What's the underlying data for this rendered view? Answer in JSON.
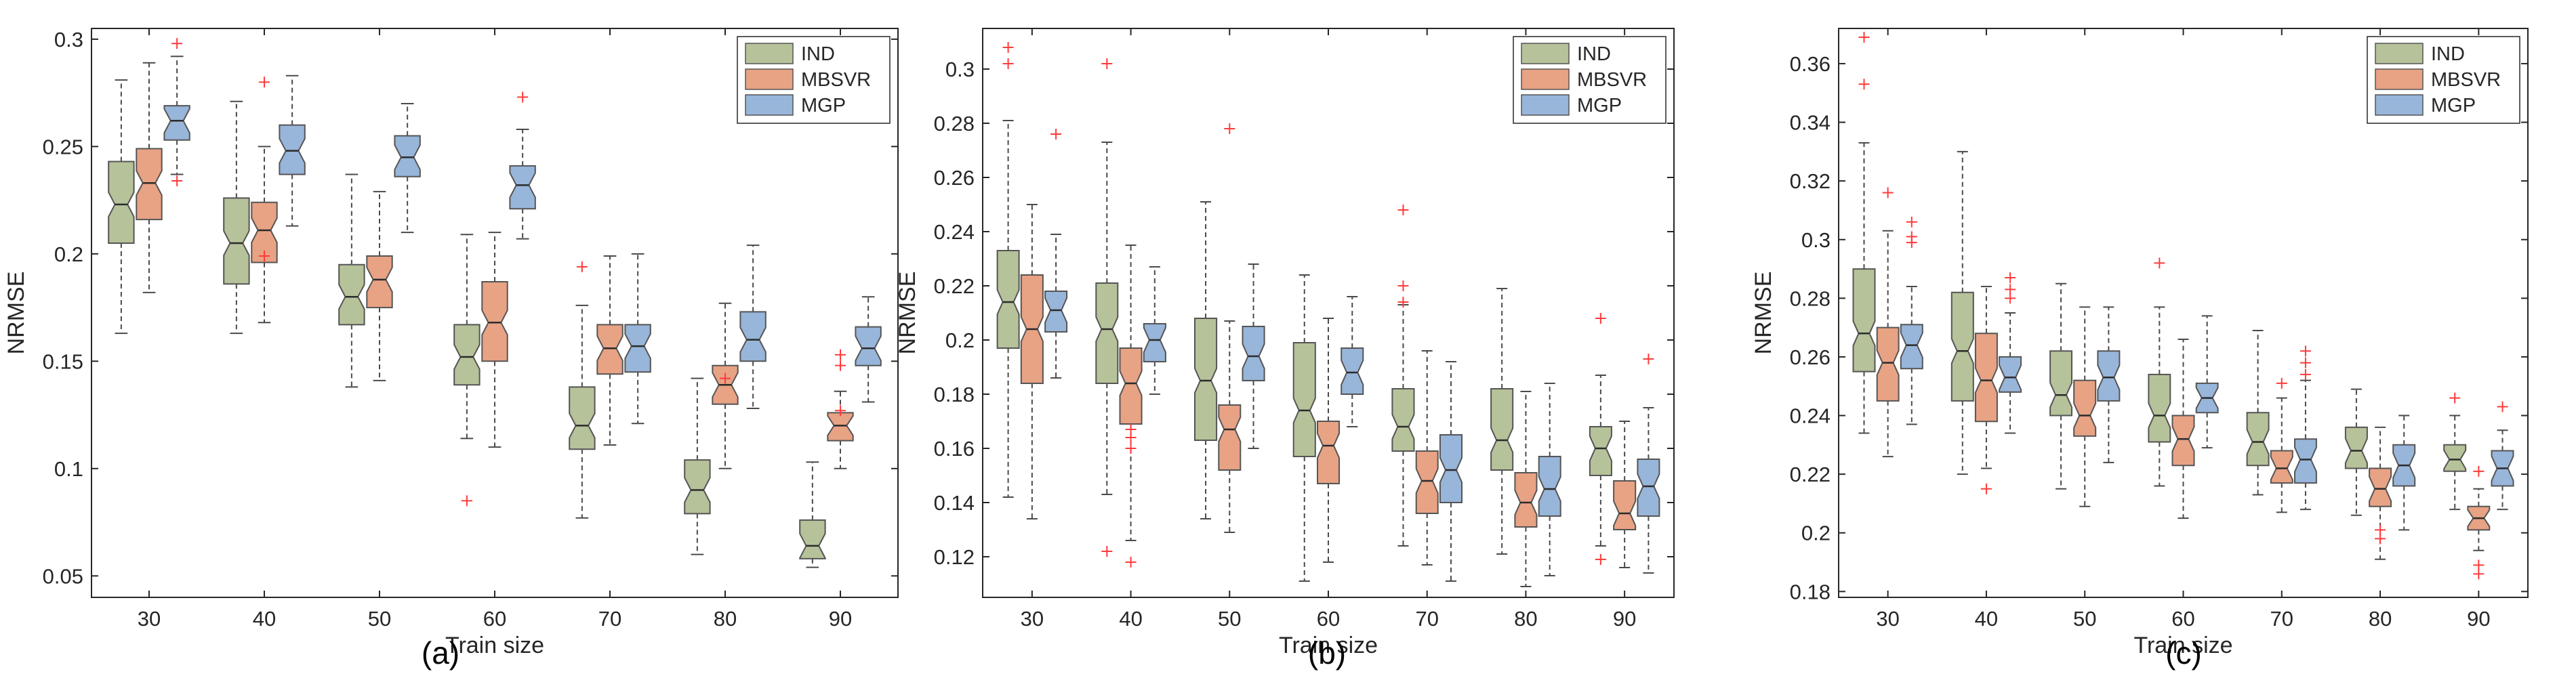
{
  "figure": {
    "panel_labels": [
      "(a)",
      "(b)",
      "(c)"
    ]
  },
  "colors": {
    "IND": "#b6c29a",
    "MBSVR": "#e8a284",
    "MGP": "#98b5da",
    "outlier": "#ff3b3b",
    "median": "#2b2b2b",
    "whisker": "#4a4a4a",
    "axis": "#262626"
  },
  "chart_data": [
    {
      "type": "boxplot",
      "panel": "(a)",
      "xlabel": "Train size",
      "ylabel": "NRMSE",
      "categories": [
        "30",
        "40",
        "50",
        "60",
        "70",
        "80",
        "90"
      ],
      "ylim": [
        0.04,
        0.305
      ],
      "yticks": [
        0.05,
        0.1,
        0.15,
        0.2,
        0.25,
        0.3
      ],
      "ytick_labels": [
        "0.05",
        "0.1",
        "0.15",
        "0.2",
        "0.25",
        "0.3"
      ],
      "legend": [
        "IND",
        "MBSVR",
        "MGP"
      ],
      "legend_position": "top-right",
      "series": [
        {
          "name": "IND",
          "boxes": [
            {
              "min": 0.163,
              "q1": 0.205,
              "median": 0.223,
              "q3": 0.243,
              "max": 0.281,
              "outliers": []
            },
            {
              "min": 0.163,
              "q1": 0.186,
              "median": 0.205,
              "q3": 0.226,
              "max": 0.271,
              "outliers": []
            },
            {
              "min": 0.138,
              "q1": 0.167,
              "median": 0.18,
              "q3": 0.195,
              "max": 0.237,
              "outliers": []
            },
            {
              "min": 0.114,
              "q1": 0.139,
              "median": 0.152,
              "q3": 0.167,
              "max": 0.209,
              "outliers": [
                0.085
              ]
            },
            {
              "min": 0.077,
              "q1": 0.109,
              "median": 0.12,
              "q3": 0.138,
              "max": 0.176,
              "outliers": [
                0.194
              ]
            },
            {
              "min": 0.06,
              "q1": 0.079,
              "median": 0.09,
              "q3": 0.104,
              "max": 0.142,
              "outliers": []
            },
            {
              "min": 0.054,
              "q1": 0.058,
              "median": 0.064,
              "q3": 0.076,
              "max": 0.103,
              "outliers": []
            }
          ]
        },
        {
          "name": "MBSVR",
          "boxes": [
            {
              "min": 0.182,
              "q1": 0.216,
              "median": 0.233,
              "q3": 0.249,
              "max": 0.289,
              "outliers": []
            },
            {
              "min": 0.168,
              "q1": 0.196,
              "median": 0.211,
              "q3": 0.224,
              "max": 0.25,
              "outliers": [
                0.28,
                0.199
              ]
            },
            {
              "min": 0.141,
              "q1": 0.175,
              "median": 0.188,
              "q3": 0.199,
              "max": 0.229,
              "outliers": []
            },
            {
              "min": 0.11,
              "q1": 0.15,
              "median": 0.168,
              "q3": 0.187,
              "max": 0.21,
              "outliers": []
            },
            {
              "min": 0.111,
              "q1": 0.144,
              "median": 0.156,
              "q3": 0.167,
              "max": 0.199,
              "outliers": []
            },
            {
              "min": 0.1,
              "q1": 0.13,
              "median": 0.139,
              "q3": 0.148,
              "max": 0.177,
              "outliers": [
                0.142
              ]
            },
            {
              "min": 0.1,
              "q1": 0.113,
              "median": 0.12,
              "q3": 0.126,
              "max": 0.136,
              "outliers": [
                0.153,
                0.148,
                0.127
              ]
            }
          ]
        },
        {
          "name": "MGP",
          "boxes": [
            {
              "min": 0.237,
              "q1": 0.253,
              "median": 0.262,
              "q3": 0.269,
              "max": 0.292,
              "outliers": [
                0.298,
                0.234
              ]
            },
            {
              "min": 0.213,
              "q1": 0.237,
              "median": 0.248,
              "q3": 0.26,
              "max": 0.283,
              "outliers": []
            },
            {
              "min": 0.21,
              "q1": 0.236,
              "median": 0.245,
              "q3": 0.255,
              "max": 0.27,
              "outliers": []
            },
            {
              "min": 0.207,
              "q1": 0.221,
              "median": 0.232,
              "q3": 0.241,
              "max": 0.258,
              "outliers": [
                0.273
              ]
            },
            {
              "min": 0.121,
              "q1": 0.145,
              "median": 0.157,
              "q3": 0.167,
              "max": 0.2,
              "outliers": []
            },
            {
              "min": 0.128,
              "q1": 0.15,
              "median": 0.16,
              "q3": 0.173,
              "max": 0.204,
              "outliers": []
            },
            {
              "min": 0.131,
              "q1": 0.148,
              "median": 0.156,
              "q3": 0.166,
              "max": 0.18,
              "outliers": []
            }
          ]
        }
      ]
    },
    {
      "type": "boxplot",
      "panel": "(b)",
      "xlabel": "Train size",
      "ylabel": "NRMSE",
      "categories": [
        "30",
        "40",
        "50",
        "60",
        "70",
        "80",
        "90"
      ],
      "ylim": [
        0.105,
        0.315
      ],
      "yticks": [
        0.12,
        0.14,
        0.16,
        0.18,
        0.2,
        0.22,
        0.24,
        0.26,
        0.28,
        0.3
      ],
      "ytick_labels": [
        "0.12",
        "0.14",
        "0.16",
        "0.18",
        "0.2",
        "0.22",
        "0.24",
        "0.26",
        "0.28",
        "0.3"
      ],
      "legend": [
        "IND",
        "MBSVR",
        "MGP"
      ],
      "legend_position": "top-right",
      "series": [
        {
          "name": "IND",
          "boxes": [
            {
              "min": 0.142,
              "q1": 0.197,
              "median": 0.214,
              "q3": 0.233,
              "max": 0.281,
              "outliers": [
                0.308,
                0.302
              ]
            },
            {
              "min": 0.143,
              "q1": 0.184,
              "median": 0.204,
              "q3": 0.221,
              "max": 0.273,
              "outliers": [
                0.302,
                0.122
              ]
            },
            {
              "min": 0.134,
              "q1": 0.163,
              "median": 0.185,
              "q3": 0.208,
              "max": 0.251,
              "outliers": []
            },
            {
              "min": 0.111,
              "q1": 0.157,
              "median": 0.174,
              "q3": 0.199,
              "max": 0.224,
              "outliers": []
            },
            {
              "min": 0.124,
              "q1": 0.159,
              "median": 0.168,
              "q3": 0.182,
              "max": 0.213,
              "outliers": [
                0.248,
                0.22,
                0.214
              ]
            },
            {
              "min": 0.121,
              "q1": 0.152,
              "median": 0.163,
              "q3": 0.182,
              "max": 0.219,
              "outliers": []
            },
            {
              "min": 0.124,
              "q1": 0.15,
              "median": 0.16,
              "q3": 0.168,
              "max": 0.187,
              "outliers": [
                0.208,
                0.119
              ]
            }
          ]
        },
        {
          "name": "MBSVR",
          "boxes": [
            {
              "min": 0.134,
              "q1": 0.184,
              "median": 0.204,
              "q3": 0.224,
              "max": 0.25,
              "outliers": []
            },
            {
              "min": 0.126,
              "q1": 0.169,
              "median": 0.184,
              "q3": 0.197,
              "max": 0.235,
              "outliers": [
                0.167,
                0.164,
                0.16,
                0.118
              ]
            },
            {
              "min": 0.129,
              "q1": 0.152,
              "median": 0.167,
              "q3": 0.176,
              "max": 0.207,
              "outliers": [
                0.278
              ]
            },
            {
              "min": 0.118,
              "q1": 0.147,
              "median": 0.161,
              "q3": 0.17,
              "max": 0.208,
              "outliers": []
            },
            {
              "min": 0.117,
              "q1": 0.136,
              "median": 0.148,
              "q3": 0.159,
              "max": 0.196,
              "outliers": []
            },
            {
              "min": 0.109,
              "q1": 0.131,
              "median": 0.14,
              "q3": 0.151,
              "max": 0.181,
              "outliers": []
            },
            {
              "min": 0.116,
              "q1": 0.13,
              "median": 0.136,
              "q3": 0.148,
              "max": 0.17,
              "outliers": []
            }
          ]
        },
        {
          "name": "MGP",
          "boxes": [
            {
              "min": 0.186,
              "q1": 0.203,
              "median": 0.211,
              "q3": 0.218,
              "max": 0.239,
              "outliers": [
                0.276
              ]
            },
            {
              "min": 0.18,
              "q1": 0.192,
              "median": 0.2,
              "q3": 0.206,
              "max": 0.227,
              "outliers": []
            },
            {
              "min": 0.16,
              "q1": 0.185,
              "median": 0.194,
              "q3": 0.205,
              "max": 0.228,
              "outliers": []
            },
            {
              "min": 0.168,
              "q1": 0.18,
              "median": 0.188,
              "q3": 0.197,
              "max": 0.216,
              "outliers": []
            },
            {
              "min": 0.111,
              "q1": 0.14,
              "median": 0.152,
              "q3": 0.165,
              "max": 0.192,
              "outliers": []
            },
            {
              "min": 0.113,
              "q1": 0.135,
              "median": 0.145,
              "q3": 0.157,
              "max": 0.184,
              "outliers": []
            },
            {
              "min": 0.114,
              "q1": 0.135,
              "median": 0.146,
              "q3": 0.156,
              "max": 0.175,
              "outliers": [
                0.193
              ]
            }
          ]
        }
      ]
    },
    {
      "type": "boxplot",
      "panel": "(c)",
      "xlabel": "Train size",
      "ylabel": "NRMSE",
      "categories": [
        "30",
        "40",
        "50",
        "60",
        "70",
        "80",
        "90"
      ],
      "ylim": [
        0.178,
        0.372
      ],
      "yticks": [
        0.18,
        0.2,
        0.22,
        0.24,
        0.26,
        0.28,
        0.3,
        0.32,
        0.34,
        0.36
      ],
      "ytick_labels": [
        "0.18",
        "0.2",
        "0.22",
        "0.24",
        "0.26",
        "0.28",
        "0.3",
        "0.32",
        "0.34",
        "0.36"
      ],
      "legend": [
        "IND",
        "MBSVR",
        "MGP"
      ],
      "legend_position": "top-right",
      "series": [
        {
          "name": "IND",
          "boxes": [
            {
              "min": 0.234,
              "q1": 0.255,
              "median": 0.268,
              "q3": 0.29,
              "max": 0.333,
              "outliers": [
                0.369,
                0.353
              ]
            },
            {
              "min": 0.22,
              "q1": 0.245,
              "median": 0.262,
              "q3": 0.282,
              "max": 0.33,
              "outliers": []
            },
            {
              "min": 0.215,
              "q1": 0.24,
              "median": 0.247,
              "q3": 0.262,
              "max": 0.285,
              "outliers": []
            },
            {
              "min": 0.216,
              "q1": 0.231,
              "median": 0.24,
              "q3": 0.254,
              "max": 0.277,
              "outliers": [
                0.292
              ]
            },
            {
              "min": 0.213,
              "q1": 0.223,
              "median": 0.231,
              "q3": 0.241,
              "max": 0.269,
              "outliers": []
            },
            {
              "min": 0.206,
              "q1": 0.222,
              "median": 0.228,
              "q3": 0.236,
              "max": 0.249,
              "outliers": []
            },
            {
              "min": 0.208,
              "q1": 0.221,
              "median": 0.225,
              "q3": 0.23,
              "max": 0.24,
              "outliers": [
                0.246
              ]
            }
          ]
        },
        {
          "name": "MBSVR",
          "boxes": [
            {
              "min": 0.226,
              "q1": 0.245,
              "median": 0.258,
              "q3": 0.27,
              "max": 0.303,
              "outliers": [
                0.316
              ]
            },
            {
              "min": 0.222,
              "q1": 0.238,
              "median": 0.252,
              "q3": 0.268,
              "max": 0.284,
              "outliers": [
                0.215
              ]
            },
            {
              "min": 0.209,
              "q1": 0.233,
              "median": 0.24,
              "q3": 0.252,
              "max": 0.277,
              "outliers": []
            },
            {
              "min": 0.205,
              "q1": 0.223,
              "median": 0.232,
              "q3": 0.24,
              "max": 0.266,
              "outliers": []
            },
            {
              "min": 0.207,
              "q1": 0.217,
              "median": 0.222,
              "q3": 0.228,
              "max": 0.246,
              "outliers": [
                0.251
              ]
            },
            {
              "min": 0.191,
              "q1": 0.209,
              "median": 0.215,
              "q3": 0.222,
              "max": 0.236,
              "outliers": [
                0.201,
                0.198
              ]
            },
            {
              "min": 0.194,
              "q1": 0.201,
              "median": 0.205,
              "q3": 0.209,
              "max": 0.215,
              "outliers": [
                0.221,
                0.189,
                0.186
              ]
            }
          ]
        },
        {
          "name": "MGP",
          "boxes": [
            {
              "min": 0.237,
              "q1": 0.256,
              "median": 0.264,
              "q3": 0.271,
              "max": 0.284,
              "outliers": [
                0.306,
                0.301,
                0.299
              ]
            },
            {
              "min": 0.234,
              "q1": 0.248,
              "median": 0.253,
              "q3": 0.26,
              "max": 0.275,
              "outliers": [
                0.287,
                0.283,
                0.28
              ]
            },
            {
              "min": 0.224,
              "q1": 0.245,
              "median": 0.253,
              "q3": 0.262,
              "max": 0.277,
              "outliers": []
            },
            {
              "min": 0.229,
              "q1": 0.241,
              "median": 0.246,
              "q3": 0.251,
              "max": 0.274,
              "outliers": []
            },
            {
              "min": 0.208,
              "q1": 0.217,
              "median": 0.225,
              "q3": 0.232,
              "max": 0.252,
              "outliers": [
                0.262,
                0.258,
                0.254
              ]
            },
            {
              "min": 0.201,
              "q1": 0.216,
              "median": 0.223,
              "q3": 0.23,
              "max": 0.24,
              "outliers": []
            },
            {
              "min": 0.208,
              "q1": 0.216,
              "median": 0.222,
              "q3": 0.228,
              "max": 0.235,
              "outliers": [
                0.243
              ]
            }
          ]
        }
      ]
    }
  ]
}
